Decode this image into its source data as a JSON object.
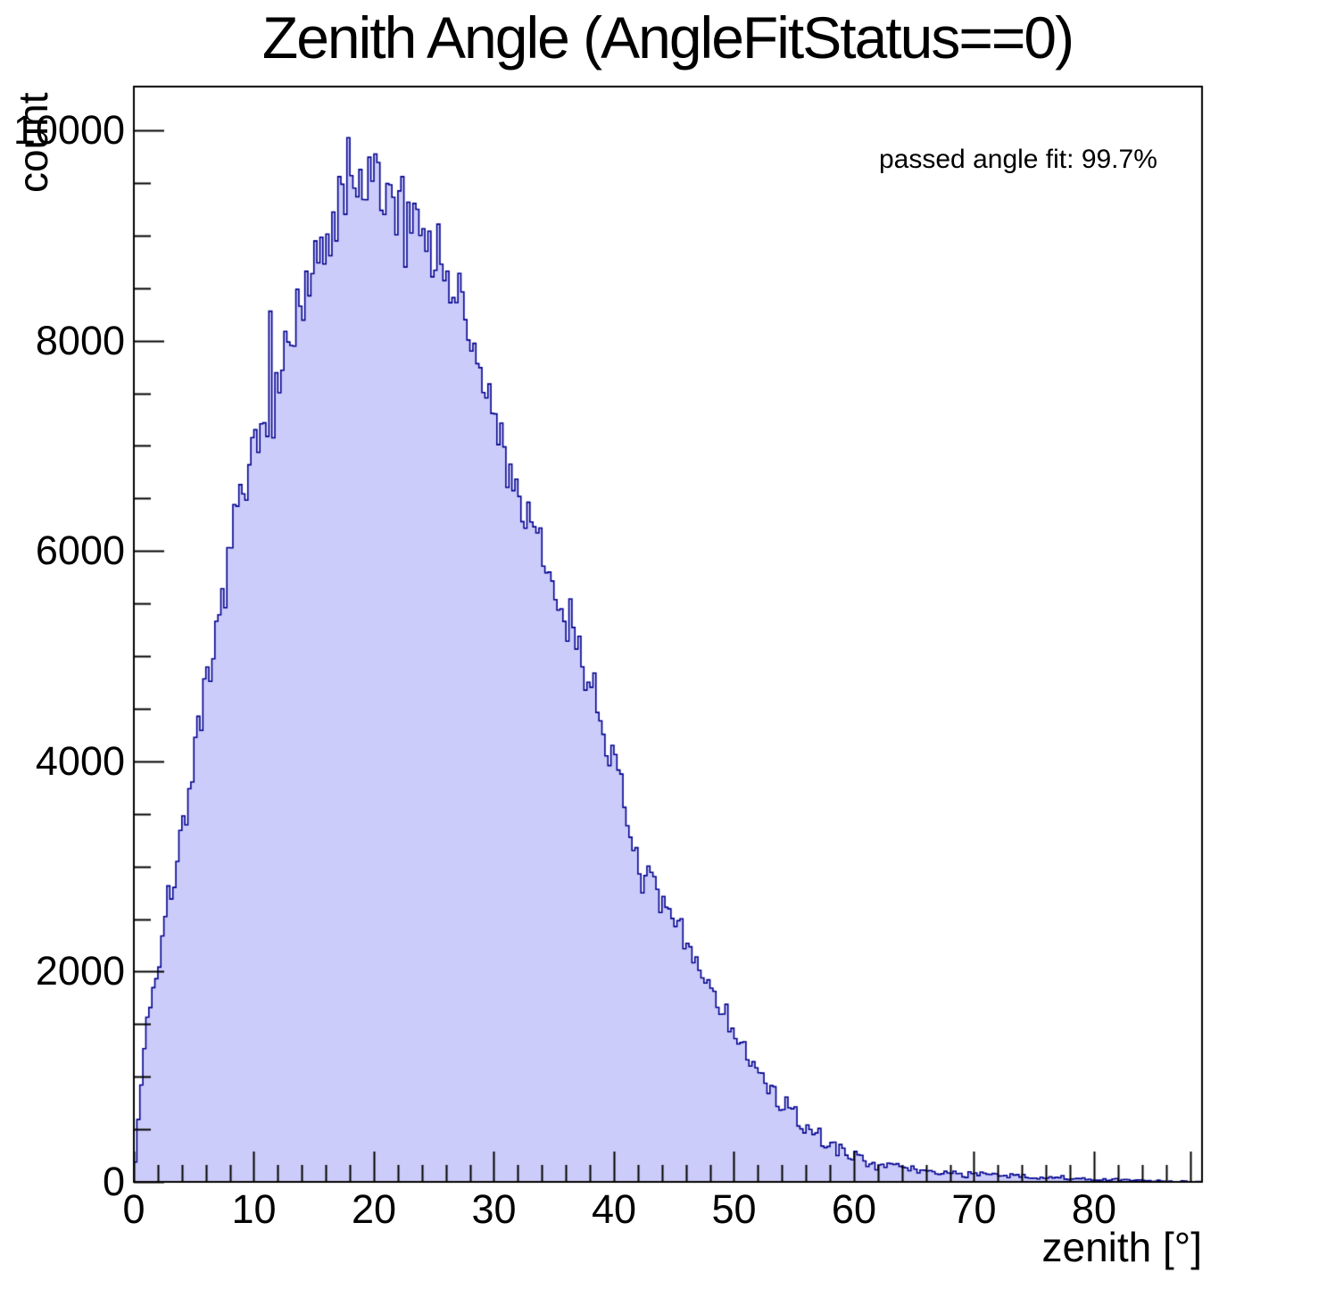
{
  "chart_data": {
    "type": "bar",
    "subtype": "step-histogram",
    "title": "Zenith Angle (AngleFitStatus==0)",
    "xlabel": "zenith [°]",
    "ylabel": "count",
    "annotation": "passed angle fit: 99.7%",
    "xlim": [
      0,
      89
    ],
    "ylim": [
      0,
      10416
    ],
    "grid": false,
    "legend": "none",
    "bin_width_deg": 0.25,
    "x_ticks": [
      {
        "value": 0,
        "label": "0"
      },
      {
        "value": 10,
        "label": "10"
      },
      {
        "value": 20,
        "label": "20"
      },
      {
        "value": 30,
        "label": "30"
      },
      {
        "value": 40,
        "label": "40"
      },
      {
        "value": 50,
        "label": "50"
      },
      {
        "value": 60,
        "label": "60"
      },
      {
        "value": 70,
        "label": "70"
      },
      {
        "value": 80,
        "label": "80"
      }
    ],
    "x_minor_tick_step": 2,
    "x_end_major_tick": 88,
    "y_ticks": [
      {
        "value": 0,
        "label": "0"
      },
      {
        "value": 2000,
        "label": "2000"
      },
      {
        "value": 4000,
        "label": "4000"
      },
      {
        "value": 6000,
        "label": "6000"
      },
      {
        "value": 8000,
        "label": "8000"
      },
      {
        "value": 10000,
        "label": "10000"
      }
    ],
    "y_minor_tick_step": 500,
    "envelope_step_deg": 1,
    "envelope_counts": [
      30,
      1500,
      2050,
      2700,
      3350,
      4000,
      4550,
      5200,
      6050,
      6450,
      6850,
      7250,
      7600,
      7950,
      8300,
      8600,
      8850,
      9150,
      9400,
      9450,
      9450,
      9400,
      9350,
      9200,
      9100,
      8900,
      8650,
      8350,
      8000,
      7650,
      7250,
      6900,
      6550,
      6200,
      5900,
      5650,
      5400,
      5080,
      4780,
      4450,
      3950,
      3450,
      3050,
      2800,
      2600,
      2450,
      2280,
      2070,
      1870,
      1660,
      1430,
      1200,
      1040,
      880,
      740,
      630,
      520,
      430,
      355,
      295,
      245,
      205,
      175,
      152,
      132,
      116,
      104,
      94,
      85,
      78,
      72,
      66,
      60,
      55,
      50,
      45,
      40,
      35,
      31,
      27,
      23,
      20,
      17,
      14,
      12,
      10,
      8,
      6,
      4,
      3
    ],
    "notable_bins": [
      {
        "x": 17.85,
        "y": 9930
      },
      {
        "x": 22.3,
        "y": 9560
      },
      {
        "x": 22.6,
        "y": 8700
      },
      {
        "x": 11.3,
        "y": 8280
      }
    ],
    "style": {
      "fill_color": "#ccccfa",
      "line_color": "#000090",
      "axis_color": "#000000",
      "background_color": "#ffffff",
      "noise_seed": 7,
      "noise_coeff": 1.9
    }
  }
}
